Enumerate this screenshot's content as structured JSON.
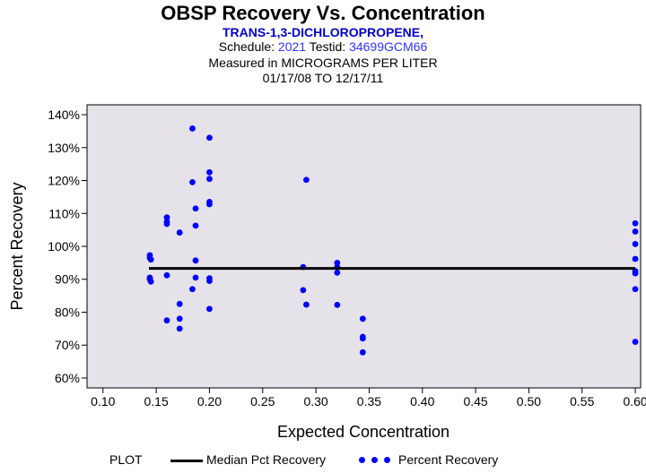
{
  "header": {
    "title": "OBSP Recovery Vs. Concentration",
    "analyte": "TRANS-1,3-DICHLOROPROPENE,",
    "schedule_label": "Schedule:",
    "schedule_value": "2021",
    "testid_label": "Testid:",
    "testid_value": "34699GCM66",
    "measured": "Measured in  MICROGRAMS PER LITER",
    "date_range": "01/17/08 TO 12/17/11"
  },
  "legend": {
    "title": "PLOT",
    "median_label": "Median Pct Recovery",
    "points_label": "Percent Recovery"
  },
  "colors": {
    "plot_bg": "#e6e2ea",
    "points": "#0000ff",
    "median_line": "#000000",
    "title_blue": "#0000cc",
    "value_blue": "#3333ff"
  },
  "chart_data": {
    "type": "scatter",
    "title": "OBSP Recovery Vs. Concentration",
    "xlabel": "Expected Concentration",
    "ylabel": "Percent Recovery",
    "xlim": [
      0.085,
      0.605
    ],
    "ylim": [
      57,
      143
    ],
    "x_ticks": [
      0.1,
      0.15,
      0.2,
      0.25,
      0.3,
      0.35,
      0.4,
      0.45,
      0.5,
      0.55,
      0.6
    ],
    "x_tick_labels": [
      "0.10",
      "0.15",
      "0.20",
      "0.25",
      "0.30",
      "0.35",
      "0.40",
      "0.45",
      "0.50",
      "0.55",
      "0.60"
    ],
    "y_ticks": [
      60,
      70,
      80,
      90,
      100,
      110,
      120,
      130,
      140
    ],
    "y_tick_labels": [
      "60%",
      "70%",
      "80%",
      "90%",
      "100%",
      "110%",
      "120%",
      "130%",
      "140%"
    ],
    "median_pct_recovery": 93.3,
    "series": [
      {
        "name": "Percent Recovery",
        "points": [
          [
            0.144,
            97.3
          ],
          [
            0.144,
            96.5
          ],
          [
            0.145,
            96.0
          ],
          [
            0.144,
            90.5
          ],
          [
            0.144,
            90.0
          ],
          [
            0.145,
            89.3
          ],
          [
            0.16,
            108.8
          ],
          [
            0.16,
            107.5
          ],
          [
            0.16,
            106.8
          ],
          [
            0.16,
            91.2
          ],
          [
            0.16,
            77.5
          ],
          [
            0.172,
            104.2
          ],
          [
            0.172,
            82.5
          ],
          [
            0.172,
            78.0
          ],
          [
            0.172,
            75.0
          ],
          [
            0.184,
            135.8
          ],
          [
            0.184,
            119.5
          ],
          [
            0.184,
            87.0
          ],
          [
            0.187,
            111.5
          ],
          [
            0.187,
            106.3
          ],
          [
            0.187,
            95.7
          ],
          [
            0.187,
            90.5
          ],
          [
            0.2,
            133.0
          ],
          [
            0.2,
            122.5
          ],
          [
            0.2,
            120.5
          ],
          [
            0.2,
            113.5
          ],
          [
            0.2,
            112.8
          ],
          [
            0.2,
            90.3
          ],
          [
            0.2,
            89.5
          ],
          [
            0.2,
            81.0
          ],
          [
            0.288,
            93.7
          ],
          [
            0.288,
            86.7
          ],
          [
            0.291,
            120.2
          ],
          [
            0.291,
            82.3
          ],
          [
            0.32,
            95.0
          ],
          [
            0.32,
            93.7
          ],
          [
            0.32,
            92.0
          ],
          [
            0.32,
            82.2
          ],
          [
            0.344,
            78.0
          ],
          [
            0.344,
            72.5
          ],
          [
            0.344,
            72.0
          ],
          [
            0.344,
            67.8
          ],
          [
            0.6,
            107.0
          ],
          [
            0.6,
            104.5
          ],
          [
            0.6,
            100.7
          ],
          [
            0.6,
            96.2
          ],
          [
            0.6,
            92.5
          ],
          [
            0.6,
            91.8
          ],
          [
            0.6,
            87.0
          ],
          [
            0.6,
            71.0
          ]
        ]
      }
    ]
  }
}
